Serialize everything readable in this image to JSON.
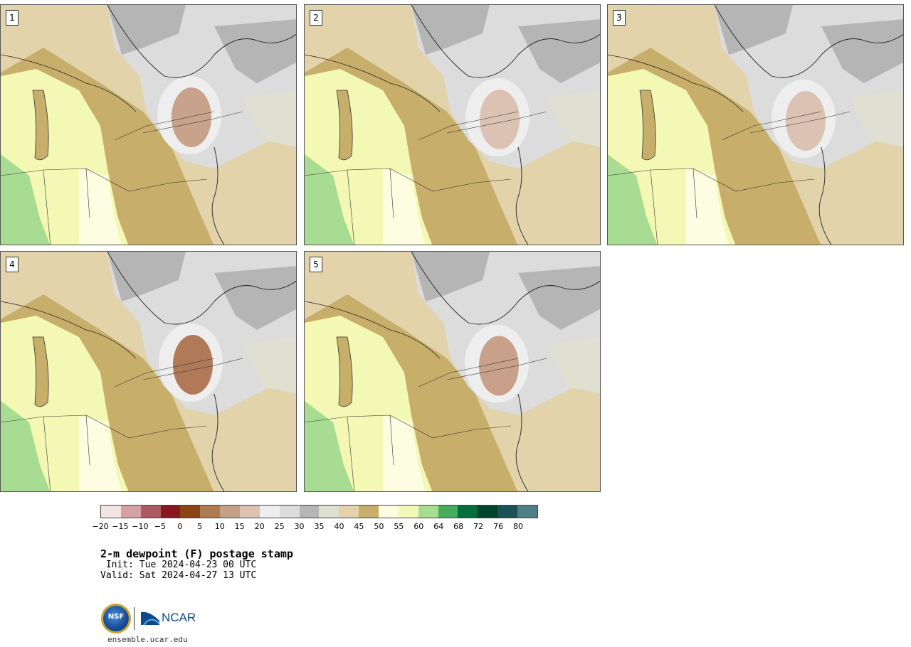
{
  "panels": [
    {
      "label": "1"
    },
    {
      "label": "2"
    },
    {
      "label": "3"
    },
    {
      "label": "4"
    },
    {
      "label": "5"
    }
  ],
  "colorbar": {
    "colors": [
      "#f1e4e4",
      "#d4a1a5",
      "#ad5b62",
      "#8b1520",
      "#8a4513",
      "#ae7a52",
      "#c4a088",
      "#dcc2b3",
      "#eeeeee",
      "#dcdcdc",
      "#b5b5b5",
      "#dfdfd2",
      "#e2d3aa",
      "#c8ae6b",
      "#fdfde1",
      "#f3f9b4",
      "#a8dc92",
      "#47ad5d",
      "#01703a",
      "#00432a",
      "#1a5254",
      "#4e7e86"
    ],
    "tick_labels": [
      "−20",
      "−15",
      "−10",
      "−5",
      "0",
      "5",
      "10",
      "15",
      "20",
      "25",
      "30",
      "35",
      "40",
      "45",
      "50",
      "55",
      "60",
      "64",
      "68",
      "72",
      "76",
      "80"
    ]
  },
  "title": "2-m dewpoint (F) postage stamp",
  "init": " Init: Tue 2024-04-23 00 UTC",
  "valid": "Valid: Sat 2024-04-27 13 UTC",
  "logos": {
    "nsf": "NSF",
    "ncar": "NCAR"
  },
  "url": "ensemble.ucar.edu"
}
